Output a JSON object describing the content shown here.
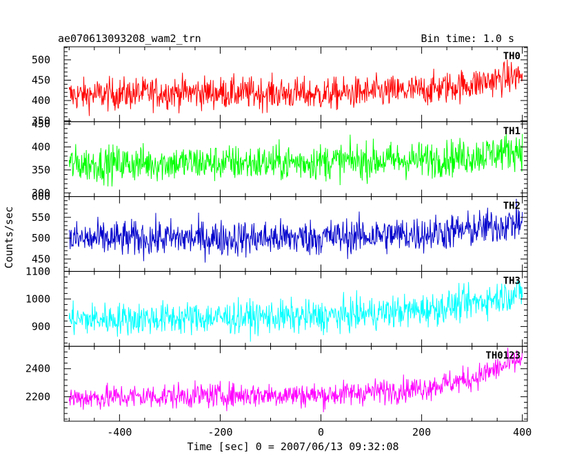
{
  "header": {
    "left": "ae070613093208_wam2_trn",
    "right": "Bin time: 1.0 s"
  },
  "chart_data": {
    "type": "line",
    "xlabel": "Time [sec] 0 = 2007/06/13 09:32:08",
    "ylabel": "Counts/sec",
    "xlim": [
      -510,
      410
    ],
    "xticks": [
      -400,
      -200,
      0,
      200,
      400
    ],
    "bin_time": 1.0,
    "panels": [
      {
        "name": "TH0",
        "color": "#ff0000",
        "ylim": [
          348,
          532
        ],
        "yticks": [
          350,
          400,
          450,
          500
        ],
        "trend": [
          [
            -510,
            412
          ],
          [
            -300,
            420
          ],
          [
            -100,
            418
          ],
          [
            0,
            415
          ],
          [
            200,
            425
          ],
          [
            300,
            440
          ],
          [
            400,
            462
          ]
        ],
        "noise": 20,
        "x_range": [
          -500,
          400
        ]
      },
      {
        "name": "TH1",
        "color": "#00ff00",
        "ylim": [
          292,
          455
        ],
        "yticks": [
          300,
          350,
          400,
          450
        ],
        "trend": [
          [
            -510,
            362
          ],
          [
            -300,
            365
          ],
          [
            -100,
            365
          ],
          [
            0,
            368
          ],
          [
            200,
            372
          ],
          [
            300,
            380
          ],
          [
            400,
            395
          ]
        ],
        "noise": 20,
        "x_range": [
          -500,
          400
        ]
      },
      {
        "name": "TH2",
        "color": "#0000cc",
        "ylim": [
          420,
          600
        ],
        "yticks": [
          450,
          500,
          550,
          600
        ],
        "trend": [
          [
            -510,
            497
          ],
          [
            -300,
            500
          ],
          [
            -100,
            500
          ],
          [
            0,
            502
          ],
          [
            200,
            510
          ],
          [
            300,
            520
          ],
          [
            400,
            540
          ]
        ],
        "noise": 22,
        "x_range": [
          -500,
          400
        ]
      },
      {
        "name": "TH3",
        "color": "#00ffff",
        "ylim": [
          828,
          1100
        ],
        "yticks": [
          900,
          1000,
          1100
        ],
        "trend": [
          [
            -510,
            925
          ],
          [
            -300,
            930
          ],
          [
            -100,
            935
          ],
          [
            0,
            935
          ],
          [
            200,
            960
          ],
          [
            300,
            985
          ],
          [
            400,
            1025
          ]
        ],
        "noise": 30,
        "x_range": [
          -500,
          400
        ]
      },
      {
        "name": "TH0123",
        "color": "#ff00ff",
        "ylim": [
          2025,
          2560
        ],
        "yticks": [
          2200,
          2400
        ],
        "trend": [
          [
            -510,
            2190
          ],
          [
            -300,
            2205
          ],
          [
            -100,
            2215
          ],
          [
            0,
            2210
          ],
          [
            200,
            2260
          ],
          [
            300,
            2330
          ],
          [
            400,
            2470
          ]
        ],
        "noise": 45,
        "x_range": [
          -500,
          400
        ]
      }
    ]
  }
}
